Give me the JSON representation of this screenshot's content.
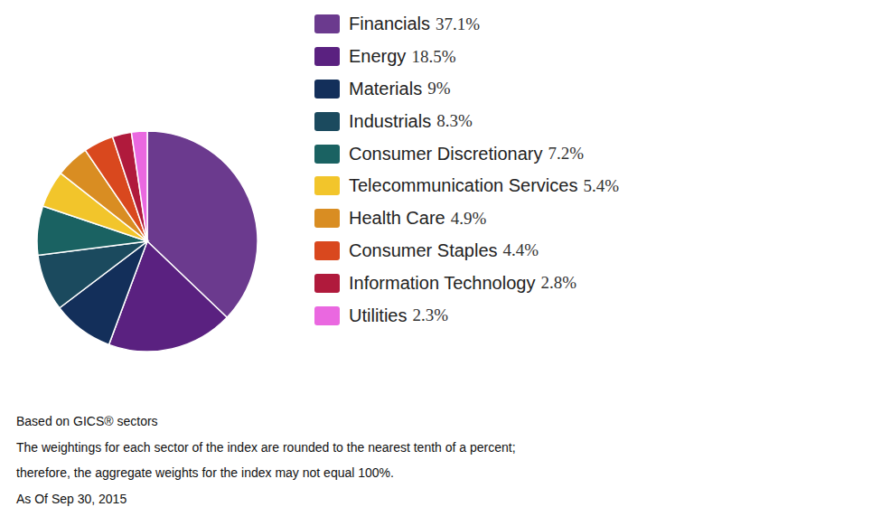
{
  "chart_data": {
    "type": "pie",
    "categories": [
      "Financials",
      "Energy",
      "Materials",
      "Industrials",
      "Consumer Discretionary",
      "Telecommunication Services",
      "Health Care",
      "Consumer Staples",
      "Information Technology",
      "Utilities"
    ],
    "values": [
      37.1,
      18.5,
      9,
      8.3,
      7.2,
      5.4,
      4.9,
      4.4,
      2.8,
      2.3
    ],
    "value_labels": [
      "37.1%",
      "18.5%",
      "9%",
      "8.3%",
      "7.2%",
      "5.4%",
      "4.9%",
      "4.4%",
      "2.8%",
      "2.3%"
    ],
    "colors": [
      "#6b3a8e",
      "#5a2180",
      "#132f5a",
      "#1b4a5e",
      "#1a6262",
      "#f2c52b",
      "#d98d22",
      "#d9481e",
      "#b01a3c",
      "#ea68e0"
    ],
    "legend": "right",
    "notes": [
      "Based on GICS® sectors",
      "The weightings for each sector of the index are rounded to the nearest tenth of a percent;",
      "therefore, the aggregate weights for the index may not equal 100%.",
      "As Of Sep 30, 2015"
    ]
  }
}
